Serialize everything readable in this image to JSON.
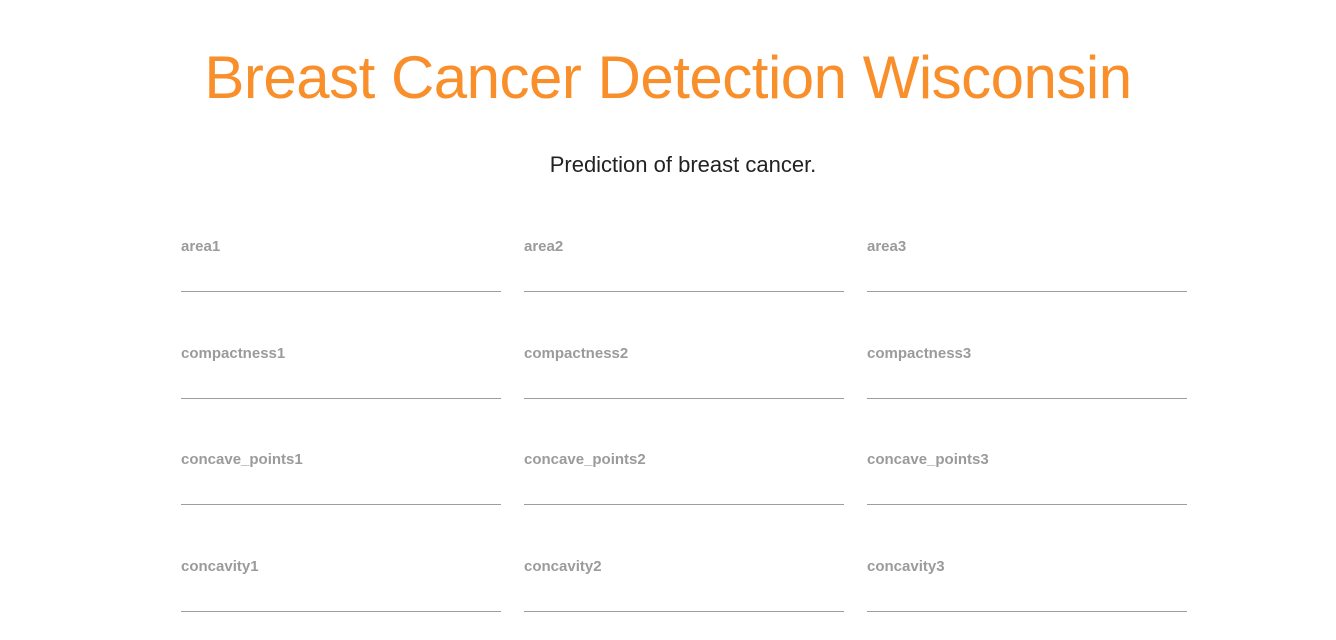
{
  "header": {
    "title": "Breast Cancer Detection Wisconsin",
    "subtitle": "Prediction of breast cancer."
  },
  "colors": {
    "accent": "#f98f2a",
    "label": "#9b9b9b",
    "underline": "#9e9e9e"
  },
  "form": {
    "fields": [
      {
        "label": "area1",
        "value": ""
      },
      {
        "label": "area2",
        "value": ""
      },
      {
        "label": "area3",
        "value": ""
      },
      {
        "label": "compactness1",
        "value": ""
      },
      {
        "label": "compactness2",
        "value": ""
      },
      {
        "label": "compactness3",
        "value": ""
      },
      {
        "label": "concave_points1",
        "value": ""
      },
      {
        "label": "concave_points2",
        "value": ""
      },
      {
        "label": "concave_points3",
        "value": ""
      },
      {
        "label": "concavity1",
        "value": ""
      },
      {
        "label": "concavity2",
        "value": ""
      },
      {
        "label": "concavity3",
        "value": ""
      }
    ]
  }
}
